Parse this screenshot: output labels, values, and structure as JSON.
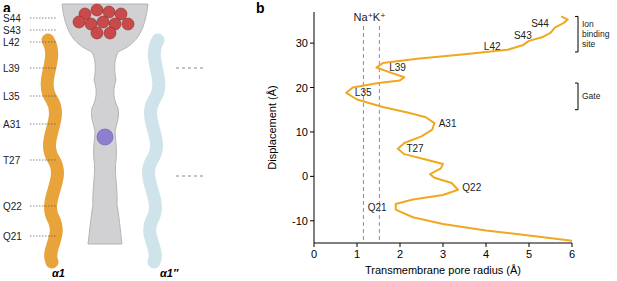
{
  "panel_a": {
    "label": "a",
    "residues": [
      "S44",
      "S43",
      "L42",
      "L39",
      "L35",
      "A31",
      "T27",
      "Q22",
      "Q21"
    ],
    "helices": [
      "α1",
      "α1″"
    ]
  },
  "chart_data": {
    "type": "line",
    "panel_label": "b",
    "x_label": "Transmembrane pore radius (Å)",
    "y_label": "Displacement (Å)",
    "x": [
      6.0,
      5.0,
      4.0,
      3.0,
      2.3,
      1.9,
      1.9,
      2.3,
      3.0,
      3.35,
      3.2,
      2.8,
      2.7,
      2.95,
      3.0,
      2.6,
      2.1,
      1.95,
      2.1,
      2.5,
      2.75,
      2.8,
      2.6,
      2.2,
      1.6,
      1.0,
      0.75,
      0.9,
      1.5,
      2.0,
      2.1,
      1.8,
      1.45,
      1.6,
      2.4,
      3.5,
      4.5,
      4.85,
      5.0,
      5.3,
      5.5,
      5.6,
      5.8,
      5.9,
      5.75
    ],
    "values": [
      -14.5,
      -13.3,
      -12.2,
      -10.7,
      -9.2,
      -7.5,
      -6.2,
      -5.2,
      -4.2,
      -3.0,
      -1.5,
      -0.3,
      0.5,
      1.8,
      2.8,
      3.8,
      5.0,
      6.2,
      7.5,
      9.0,
      10.5,
      12.0,
      13.3,
      14.3,
      15.6,
      17.3,
      18.8,
      20.0,
      21.0,
      21.6,
      22.3,
      23.3,
      24.5,
      25.5,
      26.5,
      27.5,
      28.5,
      29.5,
      30.5,
      31.3,
      32.3,
      33.5,
      34.5,
      35.3,
      36.0
    ],
    "color": "#f0a81e",
    "xlim": [
      0,
      6
    ],
    "ylim": [
      -15,
      37
    ],
    "xticks": [
      0,
      1,
      2,
      3,
      4,
      5,
      6
    ],
    "yticks": [
      -10,
      0,
      10,
      20,
      30
    ],
    "reference_lines": [
      {
        "label": "Na⁺",
        "x": 1.15,
        "color": "#b46fc9"
      },
      {
        "label": "K⁺",
        "x": 1.52,
        "color": "#b46fc9"
      }
    ],
    "annotations": [
      {
        "text": "S44",
        "x": 5.05,
        "y": 34.5
      },
      {
        "text": "S43",
        "x": 4.65,
        "y": 31.8
      },
      {
        "text": "L42",
        "x": 3.95,
        "y": 29.2
      },
      {
        "text": "L39",
        "x": 1.75,
        "y": 24.6
      },
      {
        "text": "L35",
        "x": 0.95,
        "y": 18.8
      },
      {
        "text": "A31",
        "x": 2.9,
        "y": 12.0
      },
      {
        "text": "T27",
        "x": 2.15,
        "y": 6.2
      },
      {
        "text": "Q22",
        "x": 3.45,
        "y": -2.5
      },
      {
        "text": "Q21",
        "x": 1.25,
        "y": -7.0
      }
    ],
    "regions": [
      {
        "label": "Ion binding site",
        "y": [
          28,
          36
        ]
      },
      {
        "label": "Gate",
        "y": [
          15,
          21
        ]
      }
    ]
  }
}
